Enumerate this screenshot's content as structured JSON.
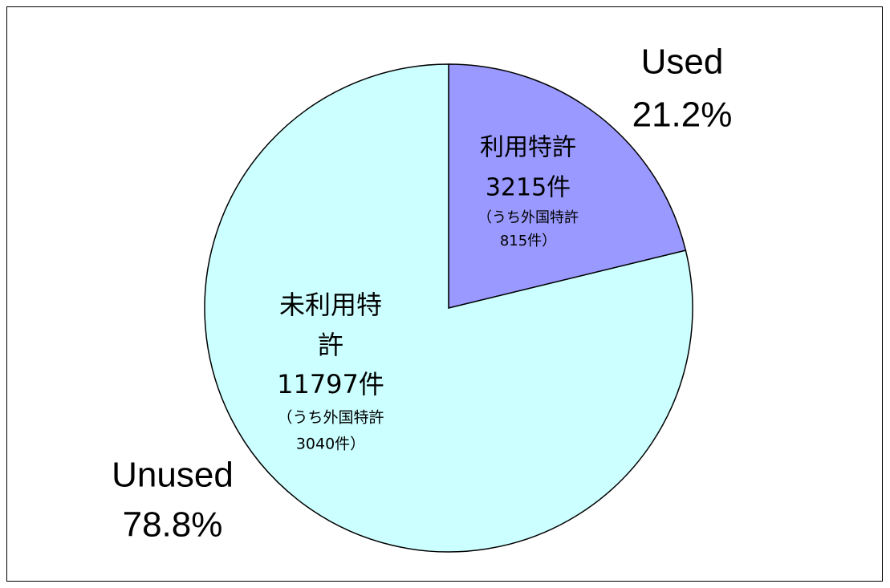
{
  "chart_data": {
    "type": "pie",
    "categories": [
      "Used",
      "Unused"
    ],
    "values": [
      21.2,
      78.8
    ],
    "value_labels": [
      "21.2%",
      "78.8%"
    ],
    "colors": [
      "#9999ff",
      "#ccffff"
    ],
    "slice_labels": [
      [
        "利用特許",
        "3215件",
        "（うち外国特許",
        "815件）"
      ],
      [
        "未利用特",
        "許",
        "11797件",
        "（うち外国特許",
        "3040件）"
      ]
    ]
  }
}
